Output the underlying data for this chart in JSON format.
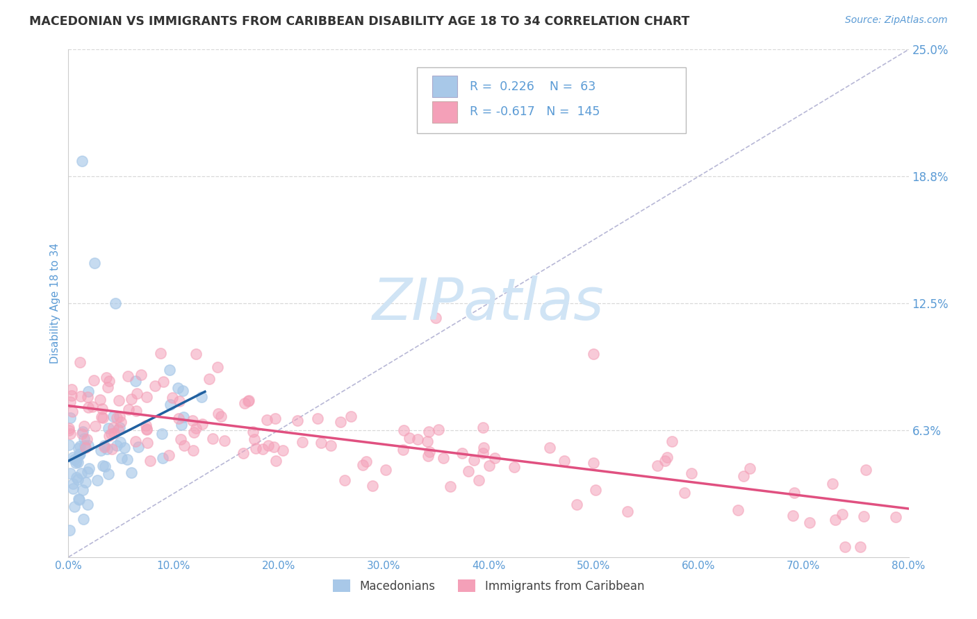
{
  "title": "MACEDONIAN VS IMMIGRANTS FROM CARIBBEAN DISABILITY AGE 18 TO 34 CORRELATION CHART",
  "source": "Source: ZipAtlas.com",
  "ylabel": "Disability Age 18 to 34",
  "legend1_label": "Macedonians",
  "legend2_label": "Immigrants from Caribbean",
  "r1": 0.226,
  "n1": 63,
  "r2": -0.617,
  "n2": 145,
  "xlim": [
    0.0,
    0.8
  ],
  "ylim": [
    0.0,
    0.25
  ],
  "yticks": [
    0.0625,
    0.125,
    0.1875,
    0.25
  ],
  "ytick_labels": [
    "6.3%",
    "12.5%",
    "18.8%",
    "25.0%"
  ],
  "xticks": [
    0.0,
    0.1,
    0.2,
    0.3,
    0.4,
    0.5,
    0.6,
    0.7,
    0.8
  ],
  "xtick_labels": [
    "0.0%",
    "10.0%",
    "20.0%",
    "30.0%",
    "40.0%",
    "50.0%",
    "60.0%",
    "70.0%",
    "80.0%"
  ],
  "color_blue": "#a8c8e8",
  "color_pink": "#f4a0b8",
  "color_trend_blue": "#2060a0",
  "color_trend_pink": "#e05080",
  "axis_color": "#5b9bd5",
  "background_color": "#ffffff",
  "grid_color": "#d8d8d8",
  "ref_line_color": "#8888bb",
  "watermark_color": "#d0e4f5"
}
